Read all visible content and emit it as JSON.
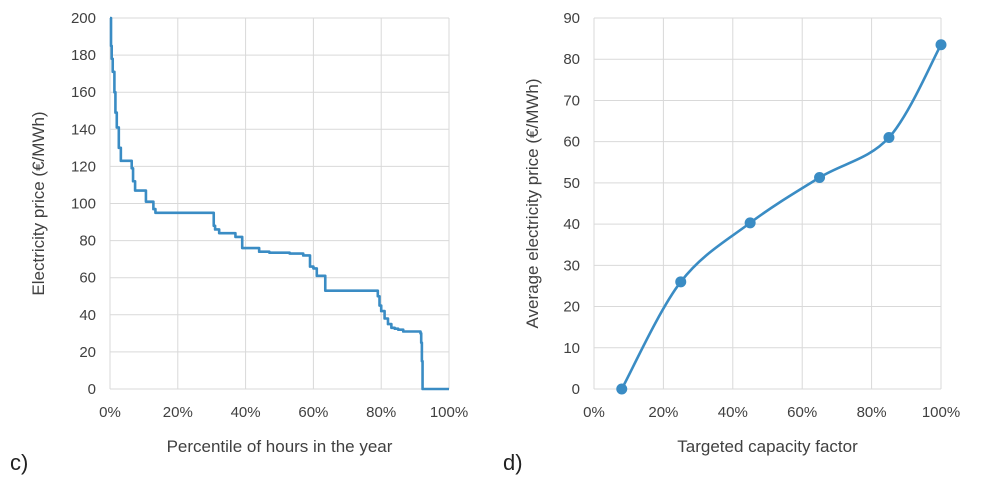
{
  "chart_data": [
    {
      "type": "line",
      "panel_label": "c)",
      "xlabel": "Percentile of hours in the year",
      "ylabel": "Electricity price (€/MWh)",
      "xlim": [
        0,
        100
      ],
      "ylim": [
        0,
        200
      ],
      "x_ticks": [
        "0%",
        "20%",
        "40%",
        "60%",
        "80%",
        "100%"
      ],
      "y_ticks": [
        "0",
        "20",
        "40",
        "60",
        "80",
        "100",
        "120",
        "140",
        "160",
        "180",
        "200"
      ],
      "grid": true,
      "color": "#3a8cc4",
      "series": [
        {
          "step": true,
          "x": [
            0,
            0.3,
            0.5,
            0.8,
            1.3,
            1.6,
            2.0,
            2.6,
            3.2,
            6.4,
            6.8,
            7.4,
            10.6,
            12.8,
            13.4,
            30.6,
            31.0,
            32.2,
            37.0,
            39.0,
            44.0,
            47.0,
            53.0,
            57.0,
            59.0,
            60.0,
            61.0,
            63.5,
            79.0,
            79.5,
            80.0,
            81.0,
            82.0,
            83.0,
            84.0,
            85.0,
            86.5,
            91.6,
            91.8,
            92.0,
            92.2,
            100
          ],
          "y": [
            200,
            185,
            178,
            171,
            160,
            149,
            141,
            130,
            123,
            119,
            112,
            107,
            101,
            97,
            95,
            88,
            86,
            84,
            82,
            76,
            74,
            73.5,
            73,
            72,
            66,
            65,
            61,
            53,
            50,
            45,
            42,
            38,
            35,
            33,
            32.5,
            32,
            31,
            30,
            25,
            15,
            0,
            0
          ]
        }
      ]
    },
    {
      "type": "line",
      "panel_label": "d)",
      "xlabel": "Targeted capacity factor",
      "ylabel": "Average electricity price (€/MWh)",
      "xlim": [
        0,
        100
      ],
      "ylim": [
        0,
        90
      ],
      "x_ticks": [
        "0%",
        "20%",
        "40%",
        "60%",
        "80%",
        "100%"
      ],
      "y_ticks": [
        "0",
        "10",
        "20",
        "30",
        "40",
        "50",
        "60",
        "70",
        "80",
        "90"
      ],
      "grid": true,
      "color": "#3a8cc4",
      "smooth": true,
      "series": [
        {
          "markers": true,
          "x": [
            8,
            25,
            45,
            65,
            85,
            100
          ],
          "y": [
            0,
            26,
            40.3,
            51.3,
            61,
            83.5
          ]
        }
      ]
    }
  ]
}
